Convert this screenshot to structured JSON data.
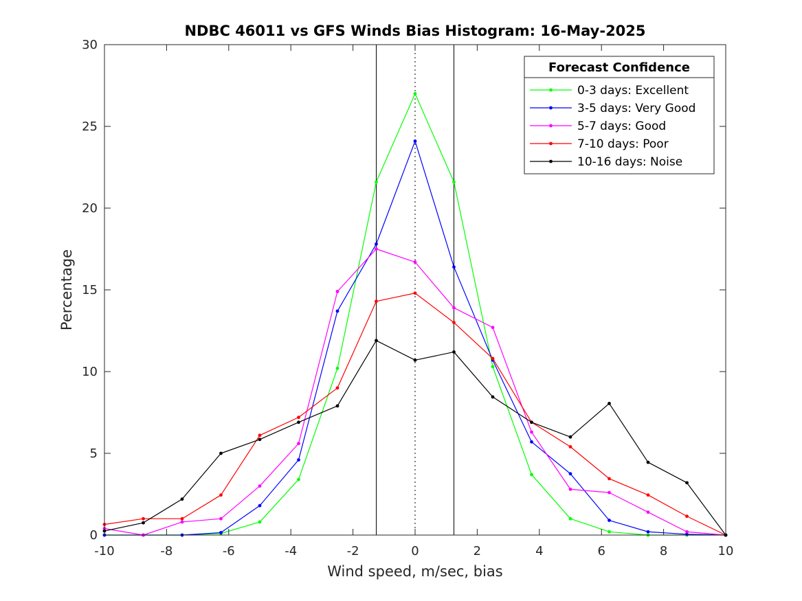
{
  "chart_data": {
    "type": "line",
    "title": "NDBC 46011 vs GFS Winds Bias Histogram: 16-May-2025",
    "xlabel": "Wind speed, m/sec, bias",
    "ylabel": "Percentage",
    "xlim": [
      -10,
      10
    ],
    "ylim": [
      0,
      30
    ],
    "xticks": [
      -10,
      -8,
      -6,
      -4,
      -2,
      0,
      2,
      4,
      6,
      8,
      10
    ],
    "yticks": [
      0,
      5,
      10,
      15,
      20,
      25,
      30
    ],
    "grid": false,
    "x": [
      -10,
      -8.75,
      -7.5,
      -6.25,
      -5,
      -3.75,
      -2.5,
      -1.25,
      0,
      1.25,
      2.5,
      3.75,
      5,
      6.25,
      7.5,
      8.75,
      10
    ],
    "reference_lines": {
      "solid_x": [
        -1.25,
        1.25
      ],
      "dotted_x": [
        0
      ]
    },
    "legend": {
      "title": "Forecast Confidence",
      "position": "top-right"
    },
    "series": [
      {
        "name": "0-3 days: Excellent",
        "color": "#00ff00",
        "values": [
          0,
          0,
          0,
          0.1,
          0.8,
          3.4,
          10.2,
          21.6,
          27.0,
          21.6,
          10.3,
          3.7,
          1.0,
          0.2,
          0,
          0,
          0
        ]
      },
      {
        "name": "3-5 days: Very Good",
        "color": "#0000ff",
        "values": [
          0,
          0,
          0,
          0.15,
          1.8,
          4.6,
          13.7,
          17.8,
          24.1,
          16.4,
          10.7,
          5.7,
          3.75,
          0.9,
          0.2,
          0.05,
          0
        ]
      },
      {
        "name": "5-7 days: Good",
        "color": "#ff00ff",
        "values": [
          0.4,
          0,
          0.8,
          1.0,
          3.0,
          5.6,
          14.9,
          17.5,
          16.7,
          13.9,
          12.7,
          6.3,
          2.8,
          2.6,
          1.4,
          0.2,
          0
        ]
      },
      {
        "name": "7-10 days: Poor",
        "color": "#ff0000",
        "values": [
          0.65,
          1.0,
          1.0,
          2.45,
          6.1,
          7.2,
          9.0,
          14.3,
          14.8,
          13.0,
          10.8,
          6.9,
          5.4,
          3.45,
          2.45,
          1.15,
          0
        ]
      },
      {
        "name": "10-16 days: Noise",
        "color": "#000000",
        "values": [
          0.25,
          0.75,
          2.2,
          5.0,
          5.85,
          6.9,
          7.9,
          11.9,
          10.7,
          11.2,
          8.45,
          6.9,
          6.0,
          8.05,
          4.45,
          3.2,
          0
        ]
      }
    ]
  }
}
